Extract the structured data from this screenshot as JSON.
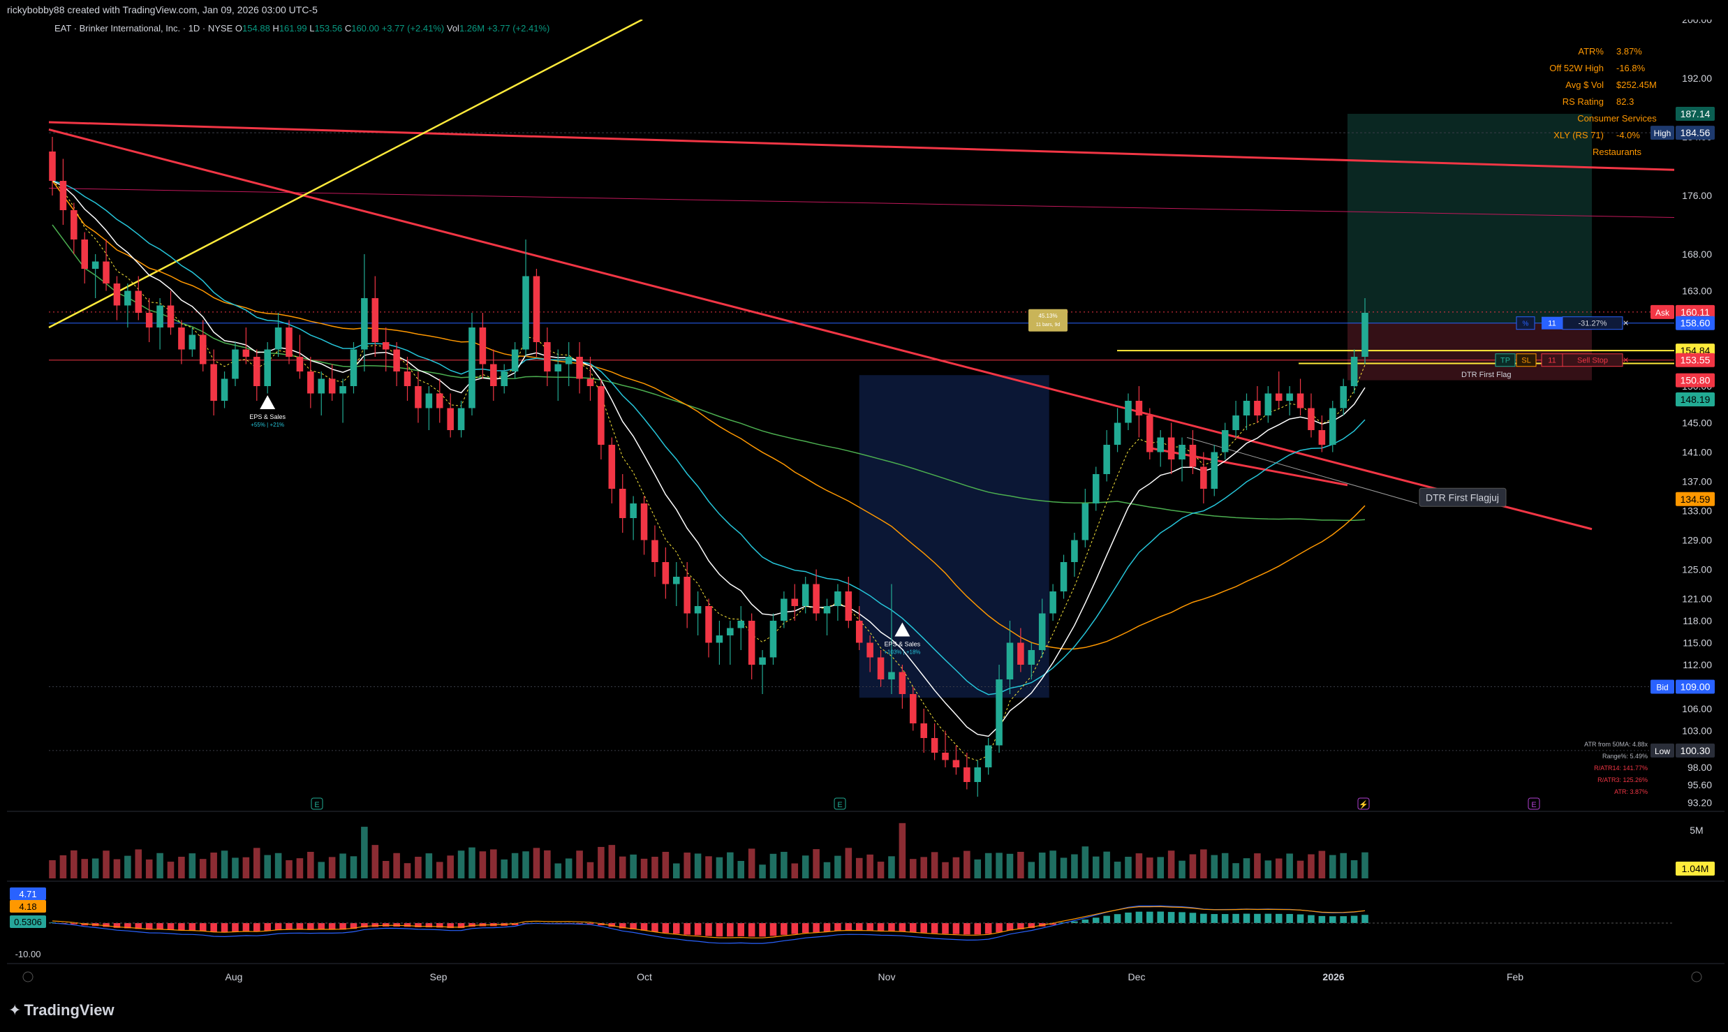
{
  "header": {
    "credit": "rickybobby88 created with TradingView.com, Jan 09, 2026 03:00 UTC-5",
    "symbol_desc": "EAT · Brinker International, Inc. · 1D · NYSE",
    "o_label": "O",
    "o_value": "154.88",
    "h_label": "H",
    "h_value": "161.99",
    "l_label": "L",
    "l_value": "153.56",
    "c_label": "C",
    "c_value": "160.00",
    "change": "+3.77 (+2.41%)",
    "vol_label": "Vol",
    "vol_value": "1.26M",
    "vol_change": "+3.77 (+2.41%)"
  },
  "stats_panel": {
    "rows": [
      {
        "label": "ATR%",
        "value": "3.87%"
      },
      {
        "label": "Off 52W High",
        "value": "-16.8%"
      },
      {
        "label": "Avg $ Vol",
        "value": "$252.45M"
      },
      {
        "label": "RS Rating",
        "value": "82.3"
      }
    ],
    "sector": "Consumer Services",
    "xly_label": "XLY (RS 71)",
    "xly_value": "-4.0%",
    "industry": "Restaurants"
  },
  "atr_box": {
    "l1": "ATR from 50MA: 4.88x",
    "l2": "Range%: 5.49%",
    "l3": "R/ATR14: 141.77%",
    "l4": "R/ATR3: 125.26%",
    "l5": "ATR: 3.87%"
  },
  "branding": {
    "logo_text": "TradingView"
  },
  "colors": {
    "up": "#22ab94",
    "down": "#f23645",
    "ema_white": "#ffffff",
    "ma_cyan": "#26c6da",
    "ma_orange": "#ff9800",
    "ma_green": "#4caf50",
    "trend_red": "#f23645",
    "trend_yellow": "#ffeb3b",
    "bg": "#000000",
    "label_blue": "#2962ff"
  },
  "chart_data": {
    "type": "candlestick",
    "timeframe": "1D",
    "y_range": [
      92,
      200
    ],
    "y_ticks": [
      "200.00",
      "192.00",
      "184.00",
      "176.00",
      "168.00",
      "163.00",
      "155.00",
      "150.00",
      "145.00",
      "141.00",
      "137.00",
      "133.00",
      "129.00",
      "125.00",
      "121.00",
      "118.00",
      "115.00",
      "112.00",
      "109.00",
      "106.00",
      "103.00",
      "98.00",
      "95.60",
      "93.20"
    ],
    "x_labels": [
      "Aug",
      "Sep",
      "Oct",
      "Nov",
      "Dec",
      "2026",
      "Feb"
    ],
    "price_labels": [
      {
        "tag": "",
        "value": "187.14"
      },
      {
        "tag": "High",
        "value": "184.56"
      },
      {
        "tag": "Ask",
        "value": "160.11"
      },
      {
        "tag": "",
        "value": "158.60"
      },
      {
        "tag": "",
        "value": "154.84"
      },
      {
        "tag": "",
        "value": "153.55"
      },
      {
        "tag": "",
        "value": "150.80"
      },
      {
        "tag": "",
        "value": "148.19"
      },
      {
        "tag": "",
        "value": "134.59"
      },
      {
        "tag": "Bid",
        "value": "109.00"
      },
      {
        "tag": "Low",
        "value": "100.30"
      }
    ],
    "candles": [
      [
        182,
        184,
        176,
        178
      ],
      [
        178,
        181,
        172,
        174
      ],
      [
        174,
        175,
        168,
        170
      ],
      [
        170,
        171,
        164,
        166
      ],
      [
        166,
        168,
        162,
        167
      ],
      [
        167,
        170,
        163,
        164
      ],
      [
        164,
        165,
        159,
        161
      ],
      [
        161,
        164,
        158,
        163
      ],
      [
        163,
        165,
        159,
        160
      ],
      [
        160,
        162,
        156,
        158
      ],
      [
        158,
        162,
        155,
        161
      ],
      [
        161,
        163,
        157,
        158
      ],
      [
        158,
        159,
        153,
        155
      ],
      [
        155,
        158,
        154,
        157
      ],
      [
        157,
        159,
        152,
        153
      ],
      [
        153,
        155,
        146,
        148
      ],
      [
        148,
        152,
        147,
        151
      ],
      [
        151,
        156,
        150,
        155
      ],
      [
        155,
        158,
        153,
        154
      ],
      [
        154,
        155,
        148,
        150
      ],
      [
        150,
        156,
        149,
        155
      ],
      [
        155,
        160,
        154,
        158
      ],
      [
        158,
        159,
        153,
        154
      ],
      [
        154,
        157,
        151,
        152
      ],
      [
        152,
        154,
        147,
        149
      ],
      [
        149,
        152,
        146,
        151
      ],
      [
        151,
        153,
        148,
        149
      ],
      [
        149,
        151,
        145,
        150
      ],
      [
        150,
        156,
        149,
        155
      ],
      [
        155,
        168,
        152,
        162
      ],
      [
        162,
        165,
        154,
        156
      ],
      [
        156,
        158,
        152,
        155
      ],
      [
        155,
        156,
        150,
        152
      ],
      [
        152,
        154,
        148,
        150
      ],
      [
        150,
        152,
        145,
        147
      ],
      [
        147,
        150,
        144,
        149
      ],
      [
        149,
        151,
        145,
        147
      ],
      [
        147,
        149,
        143,
        144
      ],
      [
        144,
        148,
        143,
        147
      ],
      [
        147,
        160,
        146,
        158
      ],
      [
        158,
        160,
        151,
        153
      ],
      [
        153,
        155,
        148,
        150
      ],
      [
        150,
        153,
        149,
        152
      ],
      [
        152,
        156,
        151,
        155
      ],
      [
        155,
        170,
        154,
        165
      ],
      [
        165,
        166,
        154,
        156
      ],
      [
        156,
        158,
        150,
        152
      ],
      [
        152,
        155,
        148,
        153
      ],
      [
        153,
        156,
        150,
        154
      ],
      [
        154,
        156,
        149,
        151
      ],
      [
        151,
        154,
        148,
        150
      ],
      [
        150,
        151,
        140,
        142
      ],
      [
        142,
        143,
        134,
        136
      ],
      [
        136,
        138,
        130,
        132
      ],
      [
        132,
        135,
        129,
        134
      ],
      [
        134,
        135,
        127,
        129
      ],
      [
        129,
        131,
        124,
        126
      ],
      [
        126,
        128,
        121,
        123
      ],
      [
        123,
        126,
        120,
        124
      ],
      [
        124,
        126,
        117,
        119
      ],
      [
        119,
        122,
        116,
        120
      ],
      [
        120,
        121,
        113,
        115
      ],
      [
        115,
        118,
        112,
        116
      ],
      [
        116,
        118,
        112,
        117
      ],
      [
        117,
        120,
        114,
        118
      ],
      [
        118,
        119,
        110,
        112
      ],
      [
        112,
        114,
        108,
        113
      ],
      [
        113,
        119,
        112,
        118
      ],
      [
        118,
        122,
        117,
        121
      ],
      [
        121,
        123,
        118,
        120
      ],
      [
        120,
        124,
        119,
        123
      ],
      [
        123,
        125,
        118,
        119
      ],
      [
        119,
        121,
        116,
        120
      ],
      [
        120,
        123,
        118,
        122
      ],
      [
        122,
        124,
        117,
        118
      ],
      [
        118,
        120,
        114,
        115
      ],
      [
        115,
        116,
        111,
        113
      ],
      [
        113,
        114,
        109,
        110
      ],
      [
        110,
        123,
        108,
        111
      ],
      [
        111,
        112,
        106,
        108
      ],
      [
        108,
        109,
        103,
        104
      ],
      [
        104,
        106,
        100,
        102
      ],
      [
        102,
        104,
        99,
        100
      ],
      [
        100,
        103,
        98,
        99
      ],
      [
        99,
        101,
        97,
        98
      ],
      [
        98,
        100,
        95,
        96
      ],
      [
        96,
        99,
        94,
        98
      ],
      [
        98,
        102,
        97,
        101
      ],
      [
        101,
        112,
        100,
        110
      ],
      [
        110,
        118,
        108,
        115
      ],
      [
        115,
        117,
        111,
        112
      ],
      [
        112,
        115,
        110,
        114
      ],
      [
        114,
        121,
        113,
        119
      ],
      [
        119,
        123,
        118,
        122
      ],
      [
        122,
        127,
        121,
        126
      ],
      [
        126,
        130,
        124,
        129
      ],
      [
        129,
        136,
        128,
        134
      ],
      [
        134,
        139,
        133,
        138
      ],
      [
        138,
        144,
        137,
        142
      ],
      [
        142,
        147,
        141,
        145
      ],
      [
        145,
        149,
        144,
        148
      ],
      [
        148,
        150,
        143,
        146
      ],
      [
        146,
        147,
        140,
        141
      ],
      [
        141,
        144,
        139,
        143
      ],
      [
        143,
        145,
        138,
        140
      ],
      [
        140,
        143,
        137,
        142
      ],
      [
        142,
        144,
        138,
        139
      ],
      [
        139,
        141,
        134,
        136
      ],
      [
        136,
        142,
        135,
        141
      ],
      [
        141,
        145,
        140,
        144
      ],
      [
        144,
        148,
        143,
        146
      ],
      [
        146,
        149,
        144,
        148
      ],
      [
        148,
        150,
        145,
        146
      ],
      [
        146,
        150,
        145,
        149
      ],
      [
        149,
        152,
        147,
        148
      ],
      [
        148,
        150,
        146,
        149
      ],
      [
        149,
        151,
        146,
        147
      ],
      [
        147,
        149,
        143,
        144
      ],
      [
        144,
        146,
        141,
        142
      ],
      [
        142,
        148,
        141,
        147
      ],
      [
        147,
        151,
        146,
        150
      ],
      [
        150,
        155,
        149,
        154
      ],
      [
        154,
        162,
        153,
        160
      ]
    ],
    "volume_range_label": "5M",
    "volume_last": "1.04M",
    "oscillator": {
      "labels": [
        "4.71",
        "4.18",
        "0.5306",
        "-10.00"
      ]
    },
    "annotations": [
      {
        "text": "EPS & Sales",
        "sub": "+55% | +21%"
      },
      {
        "text": "EPS & Sales",
        "sub": "+103% | +18%"
      },
      {
        "text": "DTR First Flagjuj"
      },
      {
        "text": "DTR First Flag"
      },
      {
        "text": "45.13%",
        "sub": "11 bars, 9d"
      }
    ],
    "position_tool": {
      "pct": "-31.27%",
      "qty": "11",
      "tp": "TP",
      "sl": "SL",
      "sell_stop": "Sell Stop"
    }
  }
}
